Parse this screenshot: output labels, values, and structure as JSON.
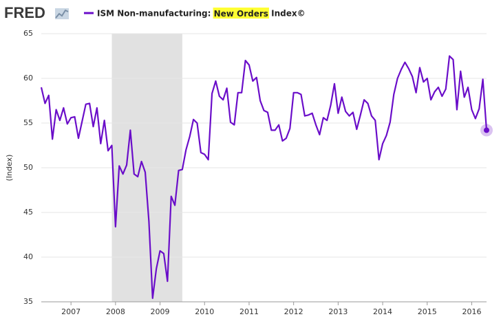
{
  "logo": "FRED",
  "chart_data": {
    "type": "line",
    "y_label": "(Index)",
    "legend_highlight": "New Orders",
    "x": [
      2006.333,
      2006.417,
      2006.5,
      2006.583,
      2006.667,
      2006.75,
      2006.833,
      2006.917,
      2007.0,
      2007.083,
      2007.167,
      2007.25,
      2007.333,
      2007.417,
      2007.5,
      2007.583,
      2007.667,
      2007.75,
      2007.833,
      2007.917,
      2008.0,
      2008.083,
      2008.167,
      2008.25,
      2008.333,
      2008.417,
      2008.5,
      2008.583,
      2008.667,
      2008.75,
      2008.833,
      2008.917,
      2009.0,
      2009.083,
      2009.167,
      2009.25,
      2009.333,
      2009.417,
      2009.5,
      2009.583,
      2009.667,
      2009.75,
      2009.833,
      2009.917,
      2010.0,
      2010.083,
      2010.167,
      2010.25,
      2010.333,
      2010.417,
      2010.5,
      2010.583,
      2010.667,
      2010.75,
      2010.833,
      2010.917,
      2011.0,
      2011.083,
      2011.167,
      2011.25,
      2011.333,
      2011.417,
      2011.5,
      2011.583,
      2011.667,
      2011.75,
      2011.833,
      2011.917,
      2012.0,
      2012.083,
      2012.167,
      2012.25,
      2012.333,
      2012.417,
      2012.5,
      2012.583,
      2012.667,
      2012.75,
      2012.833,
      2012.917,
      2013.0,
      2013.083,
      2013.167,
      2013.25,
      2013.333,
      2013.417,
      2013.5,
      2013.583,
      2013.667,
      2013.75,
      2013.833,
      2013.917,
      2014.0,
      2014.083,
      2014.167,
      2014.25,
      2014.333,
      2014.417,
      2014.5,
      2014.583,
      2014.667,
      2014.75,
      2014.833,
      2014.917,
      2015.0,
      2015.083,
      2015.167,
      2015.25,
      2015.333,
      2015.417,
      2015.5,
      2015.583,
      2015.667,
      2015.75,
      2015.833,
      2015.917,
      2016.0,
      2016.083,
      2016.167,
      2016.25,
      2016.333
    ],
    "series": [
      {
        "name": "ISM Non-manufacturing: New Orders Index©",
        "color": "#6a0dc9",
        "values": [
          59,
          57.2,
          58.1,
          53.2,
          56.5,
          55.3,
          56.7,
          54.9,
          55.6,
          55.7,
          53.3,
          55.2,
          57.1,
          57.2,
          54.6,
          56.7,
          52.7,
          55.3,
          51.9,
          52.5,
          43.4,
          50.2,
          49.3,
          50.3,
          54.2,
          49.3,
          49.0,
          50.7,
          49.5,
          44.0,
          35.4,
          38.7,
          40.7,
          40.4,
          37.3,
          46.8,
          45.8,
          49.7,
          49.8,
          52.0,
          53.5,
          55.4,
          55.0,
          51.7,
          51.5,
          50.9,
          58.3,
          59.7,
          58.0,
          57.6,
          58.9,
          55.1,
          54.8,
          58.4,
          58.4,
          62.0,
          61.5,
          59.7,
          60.1,
          57.5,
          56.4,
          56.2,
          54.2,
          54.2,
          54.8,
          53.0,
          53.3,
          54.4,
          58.4,
          58.4,
          58.2,
          55.8,
          55.9,
          56.1,
          54.8,
          53.7,
          55.6,
          55.3,
          57.0,
          59.4,
          56.1,
          57.9,
          56.3,
          55.8,
          56.2,
          54.3,
          55.9,
          57.6,
          57.2,
          55.8,
          55.3,
          50.9,
          52.7,
          53.6,
          55.1,
          58.2,
          60.0,
          61.0,
          61.8,
          61.1,
          60.2,
          58.4,
          61.2,
          59.6,
          60.0,
          57.6,
          58.5,
          59.0,
          58.0,
          58.8,
          62.5,
          62.1,
          56.5,
          60.8,
          57.9,
          59.0,
          56.5,
          55.5,
          56.6,
          59.9,
          54.2
        ]
      }
    ],
    "recessions": [
      {
        "start": 2007.917,
        "end": 2009.5,
        "color": "#e1e1e1"
      }
    ],
    "xlim": [
      2006.333,
      2016.333
    ],
    "xticks": [
      2007,
      2008,
      2009,
      2010,
      2011,
      2012,
      2013,
      2014,
      2015,
      2016
    ],
    "ylim": [
      35,
      65
    ],
    "yticks": [
      35,
      40,
      45,
      50,
      55,
      60,
      65
    ],
    "grid": true
  }
}
